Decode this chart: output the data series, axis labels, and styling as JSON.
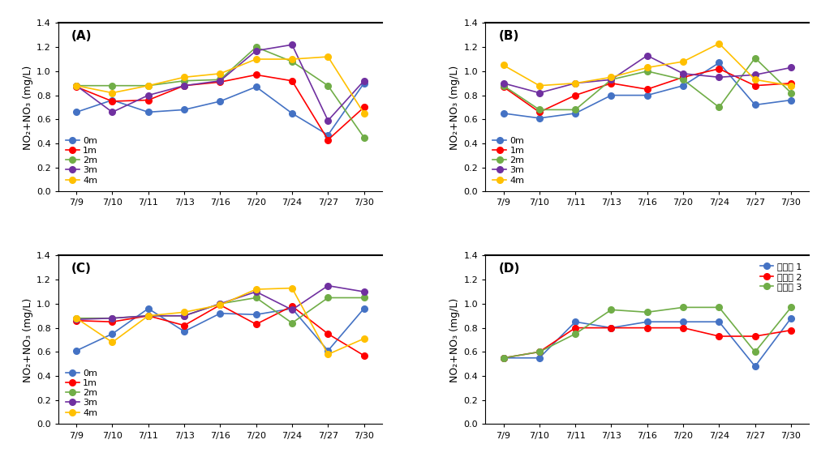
{
  "x_labels": [
    "7/9",
    "7/10",
    "7/11",
    "7/13",
    "7/16",
    "7/20",
    "7/24",
    "7/27",
    "7/30"
  ],
  "colors": {
    "0m": "#4472C4",
    "1m": "#FF0000",
    "2m": "#70AD47",
    "3m": "#7030A0",
    "4m": "#FFC000"
  },
  "panel_A": {
    "label": "(A)",
    "data": {
      "0m": [
        0.66,
        0.76,
        0.66,
        0.68,
        0.75,
        0.87,
        0.65,
        0.47,
        0.9
      ],
      "1m": [
        0.87,
        0.75,
        0.76,
        0.88,
        0.91,
        0.97,
        0.92,
        0.43,
        0.7
      ],
      "2m": [
        0.88,
        0.88,
        0.88,
        0.92,
        0.93,
        1.2,
        1.08,
        0.88,
        0.45
      ],
      "3m": [
        0.88,
        0.66,
        0.8,
        0.88,
        0.92,
        1.17,
        1.22,
        0.59,
        0.92
      ],
      "4m": [
        0.88,
        0.82,
        0.88,
        0.95,
        0.98,
        1.1,
        1.1,
        1.12,
        0.65
      ]
    }
  },
  "panel_B": {
    "label": "(B)",
    "data": {
      "0m": [
        0.65,
        0.61,
        0.65,
        0.8,
        0.8,
        0.88,
        1.07,
        0.72,
        0.76
      ],
      "1m": [
        0.87,
        0.66,
        0.8,
        0.9,
        0.85,
        0.95,
        1.02,
        0.88,
        0.9
      ],
      "2m": [
        0.88,
        0.68,
        0.68,
        0.93,
        1.0,
        0.93,
        0.7,
        1.11,
        0.82
      ],
      "3m": [
        0.9,
        0.82,
        0.9,
        0.93,
        1.13,
        0.98,
        0.95,
        0.97,
        1.03
      ],
      "4m": [
        1.05,
        0.88,
        0.9,
        0.95,
        1.03,
        1.08,
        1.23,
        0.93,
        0.88
      ]
    }
  },
  "panel_C": {
    "label": "(C)",
    "data": {
      "0m": [
        0.61,
        0.75,
        0.96,
        0.77,
        0.92,
        0.91,
        0.96,
        0.61,
        0.96
      ],
      "1m": [
        0.86,
        0.85,
        0.9,
        0.82,
        0.99,
        0.83,
        0.98,
        0.75,
        0.57
      ],
      "2m": [
        0.88,
        0.88,
        0.9,
        0.9,
        1.0,
        1.05,
        0.84,
        1.05,
        1.05
      ],
      "3m": [
        0.87,
        0.88,
        0.9,
        0.9,
        1.0,
        1.1,
        0.95,
        1.15,
        1.1
      ],
      "4m": [
        0.88,
        0.68,
        0.9,
        0.93,
        0.99,
        1.12,
        1.13,
        0.58,
        0.71
      ]
    }
  },
  "panel_D": {
    "label": "(D)",
    "legend_labels": [
      "실험조 1",
      "실험조 2",
      "실험조 3"
    ],
    "colors": [
      "#4472C4",
      "#FF0000",
      "#70AD47"
    ],
    "data": {
      "실험조 1": [
        0.55,
        0.55,
        0.85,
        0.8,
        0.85,
        0.85,
        0.85,
        0.48,
        0.88
      ],
      "실험조 2": [
        0.55,
        0.6,
        0.8,
        0.8,
        0.8,
        0.8,
        0.73,
        0.73,
        0.78
      ],
      "실험조 3": [
        0.55,
        0.6,
        0.75,
        0.95,
        0.93,
        0.97,
        0.97,
        0.6,
        0.97
      ]
    }
  },
  "ylim": [
    0.0,
    1.4
  ],
  "yticks": [
    0.0,
    0.2,
    0.4,
    0.6,
    0.8,
    1.0,
    1.2,
    1.4
  ],
  "ylabel": "NO₂+NO₃ (mg/L)",
  "title_fontsize": 11,
  "tick_fontsize": 8,
  "label_fontsize": 9,
  "legend_fontsize": 8
}
